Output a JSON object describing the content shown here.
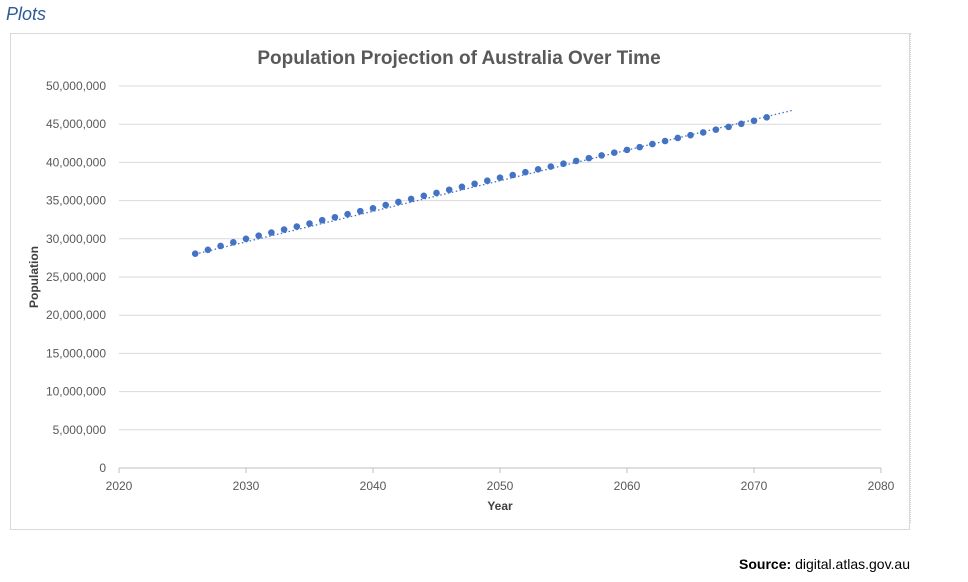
{
  "page": {
    "heading": "Plots"
  },
  "source": {
    "label": "Source",
    "separator": ":",
    "text": "digital.atlas.gov.au"
  },
  "chart_data": {
    "type": "scatter",
    "title": "Population Projection of Australia Over Time",
    "xlabel": "Year",
    "ylabel": "Population",
    "xlim": [
      2020,
      2080
    ],
    "ylim": [
      0,
      50000000
    ],
    "x_ticks": [
      2020,
      2030,
      2040,
      2050,
      2060,
      2070,
      2080
    ],
    "y_ticks": [
      0,
      5000000,
      10000000,
      15000000,
      20000000,
      25000000,
      30000000,
      35000000,
      40000000,
      45000000,
      50000000
    ],
    "x_tick_labels": [
      "2020",
      "2030",
      "2040",
      "2050",
      "2060",
      "2070",
      "2080"
    ],
    "y_tick_labels": [
      "0",
      "5,000,000",
      "10,000,000",
      "15,000,000",
      "20,000,000",
      "25,000,000",
      "30,000,000",
      "35,000,000",
      "40,000,000",
      "45,000,000",
      "50,000,000"
    ],
    "grid": "horizontal",
    "marker_color": "#4472c4",
    "trendline": {
      "style": "dotted",
      "x": [
        2026,
        2073
      ],
      "y": [
        28000000,
        46800000
      ]
    },
    "series": [
      {
        "name": "Population",
        "x": [
          2026,
          2027,
          2028,
          2029,
          2030,
          2031,
          2032,
          2033,
          2034,
          2035,
          2036,
          2037,
          2038,
          2039,
          2040,
          2041,
          2042,
          2043,
          2044,
          2045,
          2046,
          2047,
          2048,
          2049,
          2050,
          2051,
          2052,
          2053,
          2054,
          2055,
          2056,
          2057,
          2058,
          2059,
          2060,
          2061,
          2062,
          2063,
          2064,
          2065,
          2066,
          2067,
          2068,
          2069,
          2070,
          2071
        ],
        "y": [
          28050000,
          28560000,
          29060000,
          29540000,
          30000000,
          30410000,
          30820000,
          31210000,
          31600000,
          32000000,
          32430000,
          32820000,
          33220000,
          33620000,
          34000000,
          34420000,
          34820000,
          35220000,
          35630000,
          36000000,
          36420000,
          36810000,
          37200000,
          37600000,
          38000000,
          38350000,
          38720000,
          39090000,
          39460000,
          39830000,
          40200000,
          40560000,
          40920000,
          41280000,
          41640000,
          42000000,
          42400000,
          42800000,
          43200000,
          43560000,
          43920000,
          44290000,
          44650000,
          45050000,
          45450000,
          45900000
        ]
      }
    ]
  }
}
